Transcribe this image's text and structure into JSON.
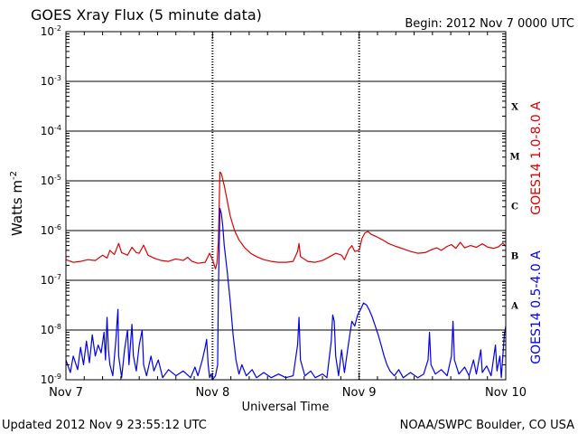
{
  "header": {
    "title": "GOES Xray Flux (5 minute data)",
    "begin": "Begin:  2012 Nov 7 0000 UTC"
  },
  "footer": {
    "updated": "Updated 2012 Nov  9 23:55:12 UTC",
    "credit": "NOAA/SWPC Boulder, CO USA"
  },
  "colors": {
    "long_channel": "#e00000",
    "short_channel": "#0000ee",
    "grid": "#000000"
  },
  "chart_data": {
    "type": "line",
    "title": "GOES Xray Flux (5 minute data)",
    "xlabel": "Universal Time",
    "ylabel": "Watts m",
    "ylabel_superscript": "-2",
    "y_scale": "log",
    "ylim": [
      1e-09,
      0.01
    ],
    "xlim": [
      "Nov 7",
      "Nov 10"
    ],
    "x_units": "days since 2012 Nov 7 0000 UTC",
    "x_ticks": [
      "Nov 7",
      "Nov 8",
      "Nov 9",
      "Nov 10"
    ],
    "y_ticks": [
      {
        "base": "10",
        "exp": "-9"
      },
      {
        "base": "10",
        "exp": "-8"
      },
      {
        "base": "10",
        "exp": "-7"
      },
      {
        "base": "10",
        "exp": "-6"
      },
      {
        "base": "10",
        "exp": "-5"
      },
      {
        "base": "10",
        "exp": "-4"
      },
      {
        "base": "10",
        "exp": "-3"
      },
      {
        "base": "10",
        "exp": "-2"
      }
    ],
    "flare_classes": [
      "A",
      "B",
      "C",
      "M",
      "X"
    ],
    "grid": true,
    "series": [
      {
        "name": "GOES14 1.0-8.0 A",
        "color": "#e00000",
        "points": [
          [
            0.0,
            2.6e-07
          ],
          [
            0.05,
            2.3e-07
          ],
          [
            0.1,
            2.4e-07
          ],
          [
            0.15,
            2.6e-07
          ],
          [
            0.2,
            2.5e-07
          ],
          [
            0.25,
            3.2e-07
          ],
          [
            0.28,
            2.8e-07
          ],
          [
            0.3,
            4e-07
          ],
          [
            0.33,
            3.3e-07
          ],
          [
            0.36,
            5.5e-07
          ],
          [
            0.38,
            3.6e-07
          ],
          [
            0.42,
            3.2e-07
          ],
          [
            0.45,
            4.6e-07
          ],
          [
            0.48,
            3.6e-07
          ],
          [
            0.5,
            3.5e-07
          ],
          [
            0.53,
            5.1e-07
          ],
          [
            0.56,
            3.2e-07
          ],
          [
            0.6,
            2.8e-07
          ],
          [
            0.65,
            2.5e-07
          ],
          [
            0.7,
            2.4e-07
          ],
          [
            0.75,
            2.7e-07
          ],
          [
            0.8,
            2.5e-07
          ],
          [
            0.83,
            2.9e-07
          ],
          [
            0.86,
            2.4e-07
          ],
          [
            0.9,
            2.2e-07
          ],
          [
            0.95,
            2.3e-07
          ],
          [
            0.98,
            3.5e-07
          ],
          [
            1.0,
            2.6e-07
          ],
          [
            1.02,
            1.7e-07
          ],
          [
            1.03,
            2.2e-07
          ],
          [
            1.04,
            6e-07
          ],
          [
            1.05,
            1.5e-05
          ],
          [
            1.06,
            1.4e-05
          ],
          [
            1.08,
            8e-06
          ],
          [
            1.1,
            4e-06
          ],
          [
            1.12,
            2e-06
          ],
          [
            1.15,
            1e-06
          ],
          [
            1.18,
            6.5e-07
          ],
          [
            1.22,
            4.5e-07
          ],
          [
            1.26,
            3.5e-07
          ],
          [
            1.3,
            3e-07
          ],
          [
            1.35,
            2.6e-07
          ],
          [
            1.4,
            2.4e-07
          ],
          [
            1.45,
            2.3e-07
          ],
          [
            1.5,
            2.3e-07
          ],
          [
            1.55,
            2.4e-07
          ],
          [
            1.58,
            3.8e-07
          ],
          [
            1.59,
            5.5e-07
          ],
          [
            1.6,
            3e-07
          ],
          [
            1.65,
            2.4e-07
          ],
          [
            1.7,
            2.3e-07
          ],
          [
            1.75,
            2.5e-07
          ],
          [
            1.8,
            3e-07
          ],
          [
            1.84,
            3.5e-07
          ],
          [
            1.88,
            3.2e-07
          ],
          [
            1.9,
            2.6e-07
          ],
          [
            1.93,
            4.2e-07
          ],
          [
            1.95,
            5e-07
          ],
          [
            1.97,
            3.8e-07
          ],
          [
            2.0,
            4e-07
          ],
          [
            2.02,
            7e-07
          ],
          [
            2.04,
            9e-07
          ],
          [
            2.06,
            9.5e-07
          ],
          [
            2.08,
            8.5e-07
          ],
          [
            2.12,
            7.5e-07
          ],
          [
            2.16,
            6.5e-07
          ],
          [
            2.2,
            5.5e-07
          ],
          [
            2.25,
            4.8e-07
          ],
          [
            2.3,
            4.3e-07
          ],
          [
            2.35,
            3.8e-07
          ],
          [
            2.4,
            3.5e-07
          ],
          [
            2.45,
            3.6e-07
          ],
          [
            2.5,
            4.2e-07
          ],
          [
            2.53,
            4.5e-07
          ],
          [
            2.56,
            4e-07
          ],
          [
            2.6,
            4.8e-07
          ],
          [
            2.63,
            5.2e-07
          ],
          [
            2.66,
            4.4e-07
          ],
          [
            2.69,
            5.8e-07
          ],
          [
            2.72,
            4.5e-07
          ],
          [
            2.76,
            5e-07
          ],
          [
            2.8,
            4.6e-07
          ],
          [
            2.84,
            5.4e-07
          ],
          [
            2.88,
            4.6e-07
          ],
          [
            2.92,
            4.4e-07
          ],
          [
            2.95,
            4.7e-07
          ],
          [
            2.98,
            5.6e-07
          ],
          [
            3.0,
            4.8e-07
          ]
        ]
      },
      {
        "name": "GOES14 0.5-4.0 A",
        "color": "#0000ee",
        "points": [
          [
            0.0,
            2.5e-09
          ],
          [
            0.03,
            1.4e-09
          ],
          [
            0.05,
            3e-09
          ],
          [
            0.08,
            1.6e-09
          ],
          [
            0.1,
            4.5e-09
          ],
          [
            0.12,
            2e-09
          ],
          [
            0.14,
            6e-09
          ],
          [
            0.16,
            2.2e-09
          ],
          [
            0.18,
            8e-09
          ],
          [
            0.2,
            3e-09
          ],
          [
            0.22,
            5e-09
          ],
          [
            0.24,
            3.5e-09
          ],
          [
            0.26,
            9e-09
          ],
          [
            0.27,
            2.5e-09
          ],
          [
            0.28,
            1.8e-08
          ],
          [
            0.29,
            4e-09
          ],
          [
            0.3,
            2e-09
          ],
          [
            0.32,
            1.2e-09
          ],
          [
            0.34,
            6e-09
          ],
          [
            0.355,
            2.6e-08
          ],
          [
            0.36,
            3e-09
          ],
          [
            0.38,
            1.1e-09
          ],
          [
            0.4,
            4e-09
          ],
          [
            0.42,
            1e-08
          ],
          [
            0.43,
            2e-09
          ],
          [
            0.45,
            1.3e-08
          ],
          [
            0.46,
            3e-09
          ],
          [
            0.48,
            1.5e-09
          ],
          [
            0.5,
            5e-09
          ],
          [
            0.52,
            1e-08
          ],
          [
            0.53,
            2e-09
          ],
          [
            0.55,
            1.2e-09
          ],
          [
            0.58,
            3e-09
          ],
          [
            0.6,
            1.5e-09
          ],
          [
            0.63,
            2.5e-09
          ],
          [
            0.66,
            1.1e-09
          ],
          [
            0.7,
            1.6e-09
          ],
          [
            0.75,
            1.2e-09
          ],
          [
            0.8,
            1.5e-09
          ],
          [
            0.85,
            1.1e-09
          ],
          [
            0.88,
            1.8e-09
          ],
          [
            0.9,
            1.2e-09
          ],
          [
            0.93,
            2.5e-09
          ],
          [
            0.95,
            4.5e-09
          ],
          [
            0.96,
            6.5e-09
          ],
          [
            0.97,
            2e-09
          ],
          [
            0.98,
            1.1e-09
          ],
          [
            0.99,
            1.3e-09
          ],
          [
            1.0,
            1e-09
          ],
          [
            1.02,
            1.2e-09
          ],
          [
            1.035,
            2e-09
          ],
          [
            1.04,
            6e-08
          ],
          [
            1.05,
            2.8e-06
          ],
          [
            1.06,
            2.2e-06
          ],
          [
            1.07,
            1.2e-06
          ],
          [
            1.08,
            5e-07
          ],
          [
            1.1,
            1.5e-07
          ],
          [
            1.12,
            4e-08
          ],
          [
            1.14,
            8e-09
          ],
          [
            1.16,
            2.5e-09
          ],
          [
            1.18,
            1.3e-09
          ],
          [
            1.2,
            2e-09
          ],
          [
            1.23,
            1.2e-09
          ],
          [
            1.27,
            1.6e-09
          ],
          [
            1.3,
            1.1e-09
          ],
          [
            1.35,
            1.4e-09
          ],
          [
            1.4,
            1.1e-09
          ],
          [
            1.45,
            1.3e-09
          ],
          [
            1.5,
            1.1e-09
          ],
          [
            1.55,
            1.2e-09
          ],
          [
            1.58,
            5e-09
          ],
          [
            1.59,
            1.8e-08
          ],
          [
            1.6,
            2.5e-09
          ],
          [
            1.63,
            1.2e-09
          ],
          [
            1.67,
            1.5e-09
          ],
          [
            1.7,
            1.1e-09
          ],
          [
            1.75,
            1.3e-09
          ],
          [
            1.78,
            1.1e-09
          ],
          [
            1.81,
            6e-09
          ],
          [
            1.82,
            2e-08
          ],
          [
            1.83,
            1.5e-08
          ],
          [
            1.84,
            3e-09
          ],
          [
            1.86,
            1.2e-09
          ],
          [
            1.88,
            4e-09
          ],
          [
            1.9,
            1.4e-09
          ],
          [
            1.93,
            6e-09
          ],
          [
            1.95,
            1.5e-08
          ],
          [
            1.97,
            1.2e-08
          ],
          [
            1.99,
            2e-08
          ],
          [
            2.01,
            2.6e-08
          ],
          [
            2.03,
            3.5e-08
          ],
          [
            2.05,
            3.2e-08
          ],
          [
            2.07,
            2.5e-08
          ],
          [
            2.09,
            1.8e-08
          ],
          [
            2.11,
            1.2e-08
          ],
          [
            2.13,
            8e-09
          ],
          [
            2.15,
            5e-09
          ],
          [
            2.17,
            3e-09
          ],
          [
            2.19,
            2e-09
          ],
          [
            2.21,
            1.5e-09
          ],
          [
            2.24,
            1.2e-09
          ],
          [
            2.27,
            1.6e-09
          ],
          [
            2.3,
            1.1e-09
          ],
          [
            2.35,
            1.4e-09
          ],
          [
            2.4,
            1.1e-09
          ],
          [
            2.44,
            1.3e-09
          ],
          [
            2.47,
            2.5e-09
          ],
          [
            2.48,
            9e-09
          ],
          [
            2.49,
            2e-09
          ],
          [
            2.52,
            1.3e-09
          ],
          [
            2.56,
            1.6e-09
          ],
          [
            2.6,
            1.2e-09
          ],
          [
            2.63,
            3e-09
          ],
          [
            2.64,
            1.5e-08
          ],
          [
            2.65,
            2.5e-09
          ],
          [
            2.68,
            1.3e-09
          ],
          [
            2.72,
            1.8e-09
          ],
          [
            2.75,
            1.2e-09
          ],
          [
            2.78,
            2.5e-09
          ],
          [
            2.8,
            1.3e-09
          ],
          [
            2.83,
            4e-09
          ],
          [
            2.84,
            1.4e-09
          ],
          [
            2.87,
            1.9e-09
          ],
          [
            2.9,
            1.2e-09
          ],
          [
            2.93,
            5e-09
          ],
          [
            2.94,
            1.5e-09
          ],
          [
            2.96,
            3e-09
          ],
          [
            2.97,
            1.1e-09
          ],
          [
            2.99,
            8e-09
          ],
          [
            3.0,
            1.2e-08
          ]
        ]
      }
    ]
  }
}
